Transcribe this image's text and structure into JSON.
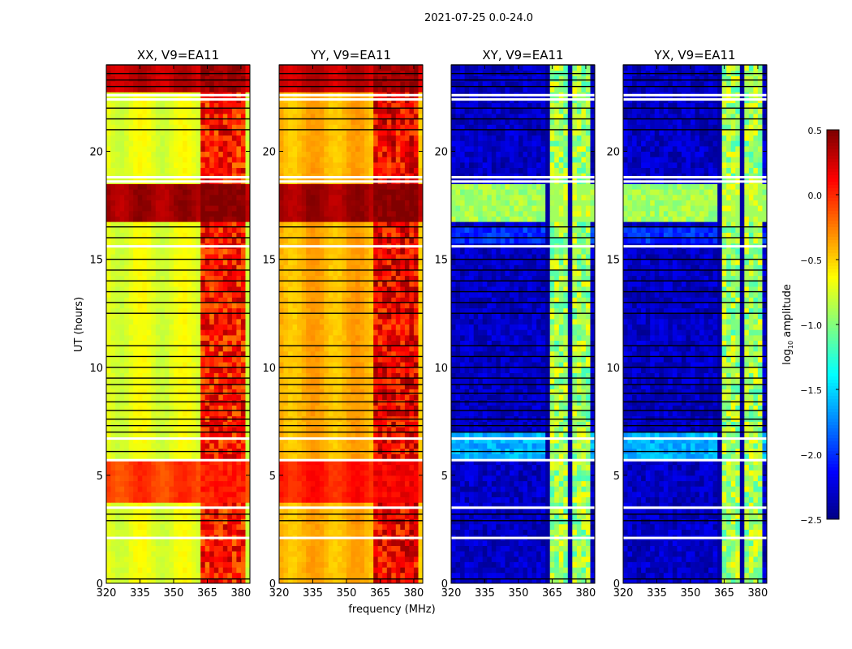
{
  "chart_data": {
    "type": "heatmap",
    "title": "2021-07-25 0.0-24.0",
    "xlabel": "frequency (MHz)",
    "ylabel": "UT (hours)",
    "xlim": [
      320,
      384
    ],
    "ylim": [
      0,
      24
    ],
    "xticks": [
      "320",
      "335",
      "350",
      "365",
      "380"
    ],
    "yticks": [
      "0",
      "5",
      "10",
      "15",
      "20"
    ],
    "colorbar": {
      "label": "log10 amplitude",
      "label_main": "log",
      "label_sub": "10",
      "label_rest": " amplitude",
      "range": [
        -2.5,
        0.5
      ],
      "ticks": [
        "0.5",
        "0.0",
        "−0.5",
        "−1.0",
        "−1.5",
        "−2.0",
        "−2.5"
      ],
      "colormap": "jet"
    },
    "rfi_band_mhz": [
      362,
      381
    ],
    "flagged_white_hours": [
      2.1,
      3.5,
      5.7,
      6.7,
      15.6,
      18.6,
      18.8,
      22.4,
      22.6
    ],
    "flagged_black_hours": [
      0.2,
      2.9,
      3.2,
      6.1,
      7.0,
      7.3,
      7.6,
      8.0,
      8.4,
      8.8,
      9.2,
      9.5,
      10.0,
      10.5,
      11.0,
      12.5,
      13.0,
      13.5,
      14.0,
      14.5,
      15.0,
      16.0,
      16.5,
      21.0,
      21.5,
      22.0,
      23.0,
      23.3,
      23.6,
      24.0
    ],
    "panels": [
      {
        "title": "XX, V9=EA11",
        "base": -0.7,
        "rfi": 0.05,
        "bands": [
          {
            "hours": [
              16.6,
              18.5
            ],
            "value": 0.4
          },
          {
            "hours": [
              3.7,
              5.6
            ],
            "value": -0.05
          },
          {
            "hours": [
              22.7,
              24
            ],
            "value": 0.3
          }
        ]
      },
      {
        "title": "YY, V9=EA11",
        "base": -0.4,
        "rfi": 0.15,
        "bands": [
          {
            "hours": [
              16.6,
              18.5
            ],
            "value": 0.4
          },
          {
            "hours": [
              3.7,
              5.6
            ],
            "value": 0.05
          },
          {
            "hours": [
              22.7,
              24
            ],
            "value": 0.3
          }
        ]
      },
      {
        "title": "XY, V9=EA11",
        "base": -2.3,
        "rfi": -0.9,
        "bands": [
          {
            "hours": [
              16.6,
              18.5
            ],
            "value": -0.9
          },
          {
            "hours": [
              5.6,
              6.8
            ],
            "value": -1.6
          },
          {
            "hours": [
              15.7,
              16.4
            ],
            "value": -2.0
          }
        ]
      },
      {
        "title": "YX, V9=EA11",
        "base": -2.3,
        "rfi": -0.9,
        "bands": [
          {
            "hours": [
              16.6,
              18.5
            ],
            "value": -0.9
          },
          {
            "hours": [
              5.6,
              6.8
            ],
            "value": -1.6
          },
          {
            "hours": [
              15.7,
              16.4
            ],
            "value": -2.0
          }
        ]
      }
    ]
  }
}
